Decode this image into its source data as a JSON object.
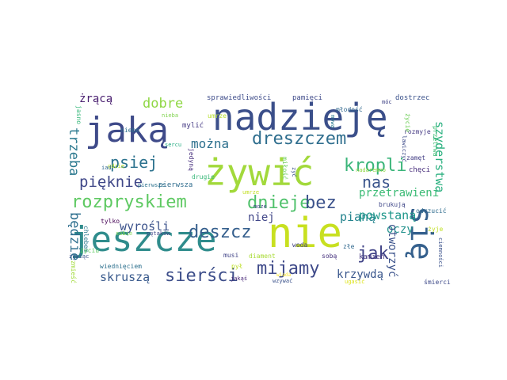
{
  "words": [
    {
      "text": "nadzieję",
      "color": "#3b4f8a"
    },
    {
      "text": "jaką",
      "color": "#3e4a89"
    },
    {
      "text": "żywić",
      "color": "#a2d93b"
    },
    {
      "text": "jeszcze",
      "color": "#2f8c8c"
    },
    {
      "text": "nie",
      "color": "#c8e020"
    },
    {
      "text": "się",
      "color": "#35608d"
    },
    {
      "text": "dreszczem",
      "color": "#2f6e8e"
    },
    {
      "text": "kropli",
      "color": "#3bb57a"
    },
    {
      "text": "rozpryskiem",
      "color": "#5ec962"
    },
    {
      "text": "dnieje",
      "color": "#4fc16b"
    },
    {
      "text": "bez",
      "color": "#3b528b"
    },
    {
      "text": "deszcz",
      "color": "#355f8d"
    },
    {
      "text": "mijamy",
      "color": "#3e4989"
    },
    {
      "text": "sierści",
      "color": "#3d4e8a"
    },
    {
      "text": "jak",
      "color": "#414487"
    },
    {
      "text": "nas",
      "color": "#3a548c"
    },
    {
      "text": "psiej",
      "color": "#2c728e"
    },
    {
      "text": "pięknie",
      "color": "#3f4788"
    },
    {
      "text": "dobre",
      "color": "#8fd744"
    },
    {
      "text": "można",
      "color": "#2d708e"
    },
    {
      "text": "trzeba",
      "color": "#2a788e"
    },
    {
      "text": "będzie",
      "color": "#2e6f8e"
    },
    {
      "text": "wyrośli",
      "color": "#3b528b"
    },
    {
      "text": "skruszą",
      "color": "#38598c"
    },
    {
      "text": "krzywdą",
      "color": "#39568c"
    },
    {
      "text": "niej",
      "color": "#404688"
    },
    {
      "text": "pianą",
      "color": "#25848e"
    },
    {
      "text": "powstaną",
      "color": "#1f978b"
    },
    {
      "text": "przetrawieni",
      "color": "#3bbb75"
    },
    {
      "text": "szyderstwa",
      "color": "#2ab07f"
    },
    {
      "text": "oczy",
      "color": "#21918c"
    },
    {
      "text": "otworzyć",
      "color": "#3b528b"
    },
    {
      "text": "żrącą",
      "color": "#481d6f"
    },
    {
      "text": "sprawiedliwości",
      "color": "#3e4c8a"
    },
    {
      "text": "pamięci",
      "color": "#3e4989"
    },
    {
      "text": "młodość",
      "color": "#31688e"
    },
    {
      "text": "dostrzec",
      "color": "#3b528b"
    },
    {
      "text": "mylić",
      "color": "#443983"
    },
    {
      "text": "niebo",
      "color": "#2d708e"
    },
    {
      "text": "jasno",
      "color": "#35b779"
    },
    {
      "text": "nieba",
      "color": "#7fd34e"
    },
    {
      "text": "umrze",
      "color": "#b5de2b"
    },
    {
      "text": "moze",
      "color": "#414487"
    },
    {
      "text": "jedyną",
      "color": "#472f7d"
    },
    {
      "text": "pierwsza",
      "color": "#2f6c8e"
    },
    {
      "text": "drugie",
      "color": "#37b878"
    },
    {
      "text": "musi",
      "color": "#404387"
    },
    {
      "text": "diament",
      "color": "#a8db34"
    },
    {
      "text": "sobą",
      "color": "#46327e"
    },
    {
      "text": "kamień",
      "color": "#453781"
    },
    {
      "text": "złe",
      "color": "#31688e"
    },
    {
      "text": "brukują",
      "color": "#3f4788"
    },
    {
      "text": "woda",
      "color": "#424186"
    },
    {
      "text": "pył",
      "color": "#bddf26"
    },
    {
      "text": "wiednięciem",
      "color": "#2d708e"
    },
    {
      "text": "chlebem",
      "color": "#2a788e"
    },
    {
      "text": "życiu",
      "color": "#5ec962"
    },
    {
      "text": "żywiąc",
      "color": "#3b528b"
    },
    {
      "text": "tylko",
      "color": "#440154"
    },
    {
      "text": "sobie",
      "color": "#7ad151"
    },
    {
      "text": "pętaków",
      "color": "#3f4788"
    },
    {
      "text": "pierwsze",
      "color": "#2c728e"
    },
    {
      "text": "gdzie",
      "color": "#b8de29"
    },
    {
      "text": "sercu",
      "color": "#25ac82"
    },
    {
      "text": "iad",
      "color": "#31688e"
    },
    {
      "text": "wzywać",
      "color": "#3b528b"
    },
    {
      "text": "ugasić",
      "color": "#dde318"
    },
    {
      "text": "jakąś",
      "color": "#482878"
    },
    {
      "text": "miłość",
      "color": "#6ccd5a"
    },
    {
      "text": "zyć",
      "color": "#3b528b"
    },
    {
      "text": "wiada",
      "color": "#fde725"
    },
    {
      "text": "umrze",
      "color": "#c2df23"
    },
    {
      "text": "rozmyje",
      "color": "#443983"
    },
    {
      "text": "chęci",
      "color": "#472d7b"
    },
    {
      "text": "zamęt",
      "color": "#433e85"
    },
    {
      "text": "odrzucić",
      "color": "#2f6c8e"
    },
    {
      "text": "żyje",
      "color": "#c0df25"
    },
    {
      "text": "śmierci",
      "color": "#3e4a89"
    },
    {
      "text": "ciemności",
      "color": "#3b528b"
    },
    {
      "text": "nadaremno",
      "color": "#8fd744"
    },
    {
      "text": "życie",
      "color": "#6ece58"
    },
    {
      "text": "przetrwa",
      "color": "#3fbc73"
    },
    {
      "text": "zmieść",
      "color": "#a0da39"
    },
    {
      "text": "móc",
      "color": "#414487"
    },
    {
      "text": "lawiczyć",
      "color": "#3e4c8a"
    },
    {
      "text": "mowa",
      "color": "#2a788e"
    }
  ]
}
